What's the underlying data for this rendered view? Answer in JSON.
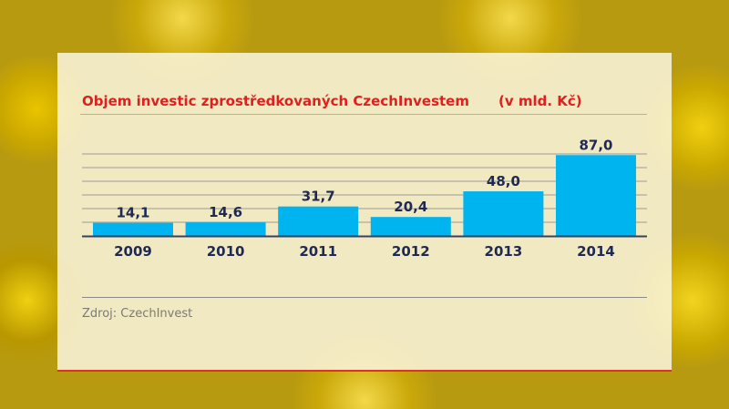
{
  "chart_data": {
    "type": "bar",
    "title": "Objem investic zprostředkovaných CzechInvestem",
    "unit_label": "(v mld. Kč)",
    "categories": [
      "2009",
      "2010",
      "2011",
      "2012",
      "2013",
      "2014"
    ],
    "values": [
      14.1,
      14.6,
      31.7,
      20.4,
      48.0,
      87.0
    ],
    "data_labels": [
      "14,1",
      "14,6",
      "31,7",
      "20,4",
      "48,0",
      "87,0"
    ],
    "ylim": [
      0,
      100
    ],
    "grid": true,
    "bar_color": "#00b4f0",
    "source": "Zdroj: CzechInvest"
  }
}
